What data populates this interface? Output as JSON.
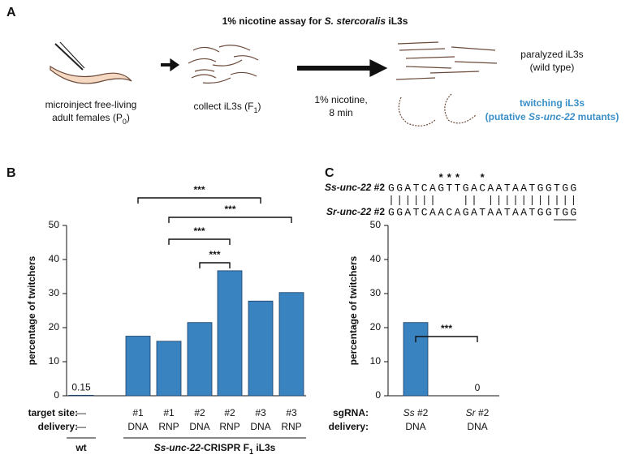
{
  "panels": [
    "A",
    "B",
    "C"
  ],
  "assay": {
    "title": [
      "1% nicotine assay for ",
      "S. stercoralis",
      " iL3s"
    ],
    "inject": [
      "microinject free-living",
      "adult females (P",
      "0",
      ")"
    ],
    "collect": [
      "collect iL3s (F",
      "1",
      ")"
    ],
    "treatment": [
      "1% nicotine,",
      "8 min"
    ],
    "paralyzed": [
      "paralyzed iL3s",
      "(wild type)"
    ],
    "twitching": [
      "twitching iL3s",
      "(putative ",
      "Ss-unc-22",
      " mutants)"
    ]
  },
  "chart_data": [
    {
      "type": "bar",
      "ylabel": "percentage of twitchers",
      "color": "#3a83c1",
      "row_labels": [
        "target site:",
        "delivery:"
      ],
      "categories": [
        "—",
        "#1",
        "#1",
        "#2",
        "#2",
        "#3",
        "#3"
      ],
      "delivery": [
        "—",
        "DNA",
        "RNP",
        "DNA",
        "RNP",
        "DNA",
        "RNP"
      ],
      "values": [
        0.15,
        17.5,
        16,
        21.5,
        36.7,
        27.8,
        30.3
      ],
      "value_labels": [
        "0.15",
        null,
        null,
        null,
        null,
        null,
        null
      ],
      "groups": [
        {
          "label": [
            "wt"
          ],
          "span": [
            0,
            0
          ]
        },
        {
          "label": [
            "Ss-unc-22",
            "-CRISPR F",
            "1",
            " iL3s"
          ],
          "span": [
            1,
            6
          ]
        }
      ],
      "significance": [
        {
          "pair": [
            1,
            5
          ],
          "label": "***"
        },
        {
          "pair": [
            2,
            6
          ],
          "label": "***"
        },
        {
          "pair": [
            2,
            4
          ],
          "label": "***"
        },
        {
          "pair": [
            3,
            4
          ],
          "label": "***"
        }
      ],
      "ylim": [
        0,
        50
      ],
      "yticks": [
        0,
        10,
        20,
        30,
        40,
        50
      ]
    },
    {
      "type": "bar",
      "ylabel": "percentage of twitchers",
      "color": "#3a83c1",
      "row_labels": [
        "sgRNA:",
        "delivery:"
      ],
      "categories": [
        [
          "Ss",
          " #2"
        ],
        [
          "Sr",
          " #2"
        ]
      ],
      "delivery": [
        "DNA",
        "DNA"
      ],
      "values": [
        21.5,
        0
      ],
      "value_labels": [
        null,
        "0"
      ],
      "significance": [
        {
          "pair": [
            0,
            1
          ],
          "label": "***"
        }
      ],
      "sequences": [
        {
          "name": [
            "Ss-unc-22",
            " #2"
          ],
          "seq": "GGATCAGTTGACAATAATGGTGG"
        },
        {
          "name": [
            "Sr-unc-22",
            " #2"
          ],
          "seq": "GGATCAACAGATAATAATGGTGG"
        }
      ],
      "mismatch_marks": "      ***  *",
      "ylim": [
        0,
        50
      ],
      "yticks": [
        0,
        10,
        20,
        30,
        40,
        50
      ]
    }
  ]
}
